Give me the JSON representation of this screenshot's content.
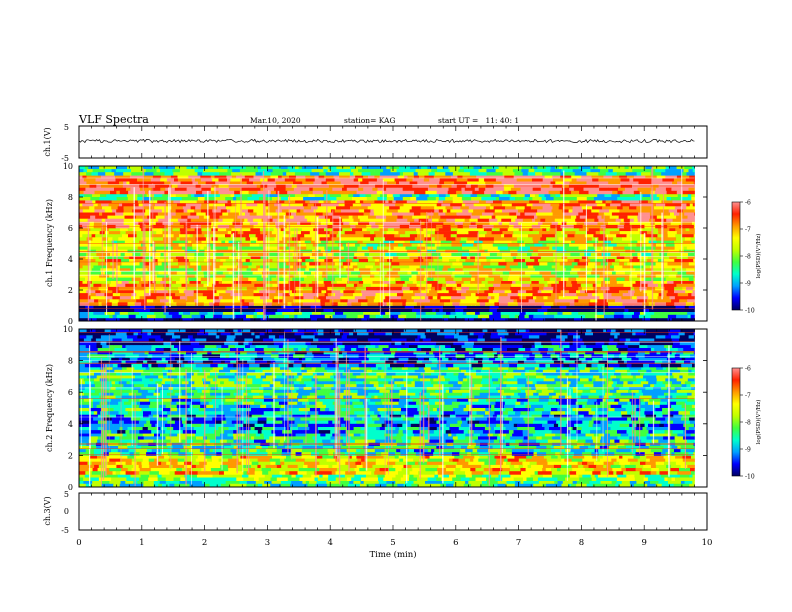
{
  "header": {
    "title": "VLF Spectra",
    "date": "Mar.10, 2020",
    "station": "station= KAG",
    "start": "start UT =   11: 40: 1"
  },
  "chart_data": [
    {
      "type": "line",
      "ylabel": "ch.1(V)",
      "ylim": [
        -5,
        5
      ],
      "ytick_labels": [
        "5",
        "-5"
      ],
      "x": [
        0,
        1,
        2,
        3,
        4,
        5,
        6,
        7,
        8,
        9,
        9.8
      ],
      "y": [
        0,
        0,
        0,
        0,
        0,
        0,
        0,
        0,
        0,
        0,
        0
      ],
      "line_color": "#000000"
    },
    {
      "type": "heatmap",
      "ylabel": "ch.1 Frequency (kHz)",
      "ylim": [
        0,
        10
      ],
      "yticks": [
        0,
        2,
        4,
        6,
        8,
        10
      ],
      "xlim": [
        0,
        9.8
      ],
      "freq_bands": [
        {
          "from": 0.0,
          "to": 0.2,
          "level": -10
        },
        {
          "from": 0.2,
          "to": 0.6,
          "level": -8.6
        },
        {
          "from": 0.6,
          "to": 1.0,
          "level": -10
        },
        {
          "from": 1.0,
          "to": 2.0,
          "level": -6.8
        },
        {
          "from": 2.0,
          "to": 2.6,
          "level": -7.1
        },
        {
          "from": 2.6,
          "to": 3.6,
          "level": -7.6
        },
        {
          "from": 3.6,
          "to": 4.2,
          "level": -7.4
        },
        {
          "from": 4.2,
          "to": 5.2,
          "level": -7.7
        },
        {
          "from": 5.2,
          "to": 6.0,
          "level": -7.2
        },
        {
          "from": 6.0,
          "to": 7.8,
          "level": -6.8
        },
        {
          "from": 7.8,
          "to": 8.2,
          "level": -8.2
        },
        {
          "from": 8.2,
          "to": 9.4,
          "level": -6.5
        },
        {
          "from": 9.4,
          "to": 10.0,
          "level": -8.4
        }
      ],
      "colorbar": {
        "label": "log(PSD)(V²/Hz)",
        "range": [
          -10,
          -6
        ],
        "tick_labels": [
          "-6",
          "-7",
          "-8",
          "-9",
          "-10"
        ]
      }
    },
    {
      "type": "heatmap",
      "ylabel": "ch.2 Frequency (kHz)",
      "ylim": [
        0,
        10
      ],
      "yticks": [
        0,
        2,
        4,
        6,
        8,
        10
      ],
      "xlim": [
        0,
        9.8
      ],
      "freq_bands": [
        {
          "from": 0.0,
          "to": 0.4,
          "level": -8.4
        },
        {
          "from": 0.4,
          "to": 0.8,
          "level": -8.0
        },
        {
          "from": 0.8,
          "to": 2.0,
          "level": -7.4
        },
        {
          "from": 2.0,
          "to": 3.4,
          "level": -8.5
        },
        {
          "from": 3.4,
          "to": 4.6,
          "level": -8.9
        },
        {
          "from": 4.6,
          "to": 5.6,
          "level": -8.6
        },
        {
          "from": 5.6,
          "to": 7.6,
          "level": -8.4
        },
        {
          "from": 7.6,
          "to": 8.2,
          "level": -9.2
        },
        {
          "from": 8.2,
          "to": 9.0,
          "level": -8.9
        },
        {
          "from": 9.0,
          "to": 10.0,
          "level": -9.6
        }
      ],
      "colorbar": {
        "label": "log(PSD)(V²/Hz)",
        "range": [
          -10,
          -6
        ],
        "tick_labels": [
          "-6",
          "-7",
          "-8",
          "-9",
          "-10"
        ]
      }
    },
    {
      "type": "line",
      "ylabel": "ch.3(V)",
      "ylim": [
        -5,
        5
      ],
      "ytick_labels": [
        "5",
        "0",
        "-5"
      ],
      "x": [],
      "y": []
    }
  ],
  "xaxis": {
    "label": "Time (min)",
    "xlim": [
      0,
      10
    ],
    "tick_labels": [
      "0",
      "1",
      "2",
      "3",
      "4",
      "5",
      "6",
      "7",
      "8",
      "9",
      "10"
    ]
  },
  "colormap": [
    "#000060",
    "#0000ff",
    "#00a0ff",
    "#00ffcc",
    "#40ff40",
    "#c0ff00",
    "#ffff00",
    "#ff9900",
    "#ff2200",
    "#ff9090"
  ]
}
